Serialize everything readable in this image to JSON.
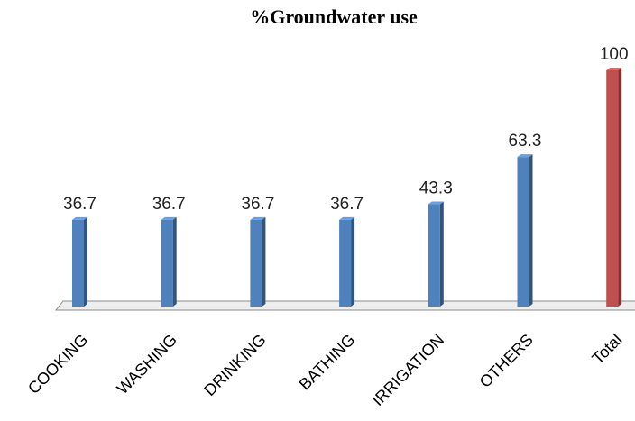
{
  "chart_data": {
    "type": "bar",
    "title": "%Groundwater use",
    "xlabel": "",
    "ylabel": "",
    "categories": [
      "COOKING",
      "WASHING",
      "DRINKING",
      "BATHING",
      "IRRIGATION",
      "OTHERS",
      "Total"
    ],
    "values": [
      36.7,
      36.7,
      36.7,
      36.7,
      43.3,
      63.3,
      100
    ],
    "value_labels": [
      "36.7",
      "36.7",
      "36.7",
      "36.7",
      "43.3",
      "63.3",
      "100"
    ],
    "ylim": [
      0,
      100
    ],
    "grid": false,
    "legend": "none",
    "colors": {
      "default": "#4f81bd",
      "highlight": "#c0504d",
      "highlight_category": "Total"
    },
    "style": "3d-cylinder-like bars"
  }
}
